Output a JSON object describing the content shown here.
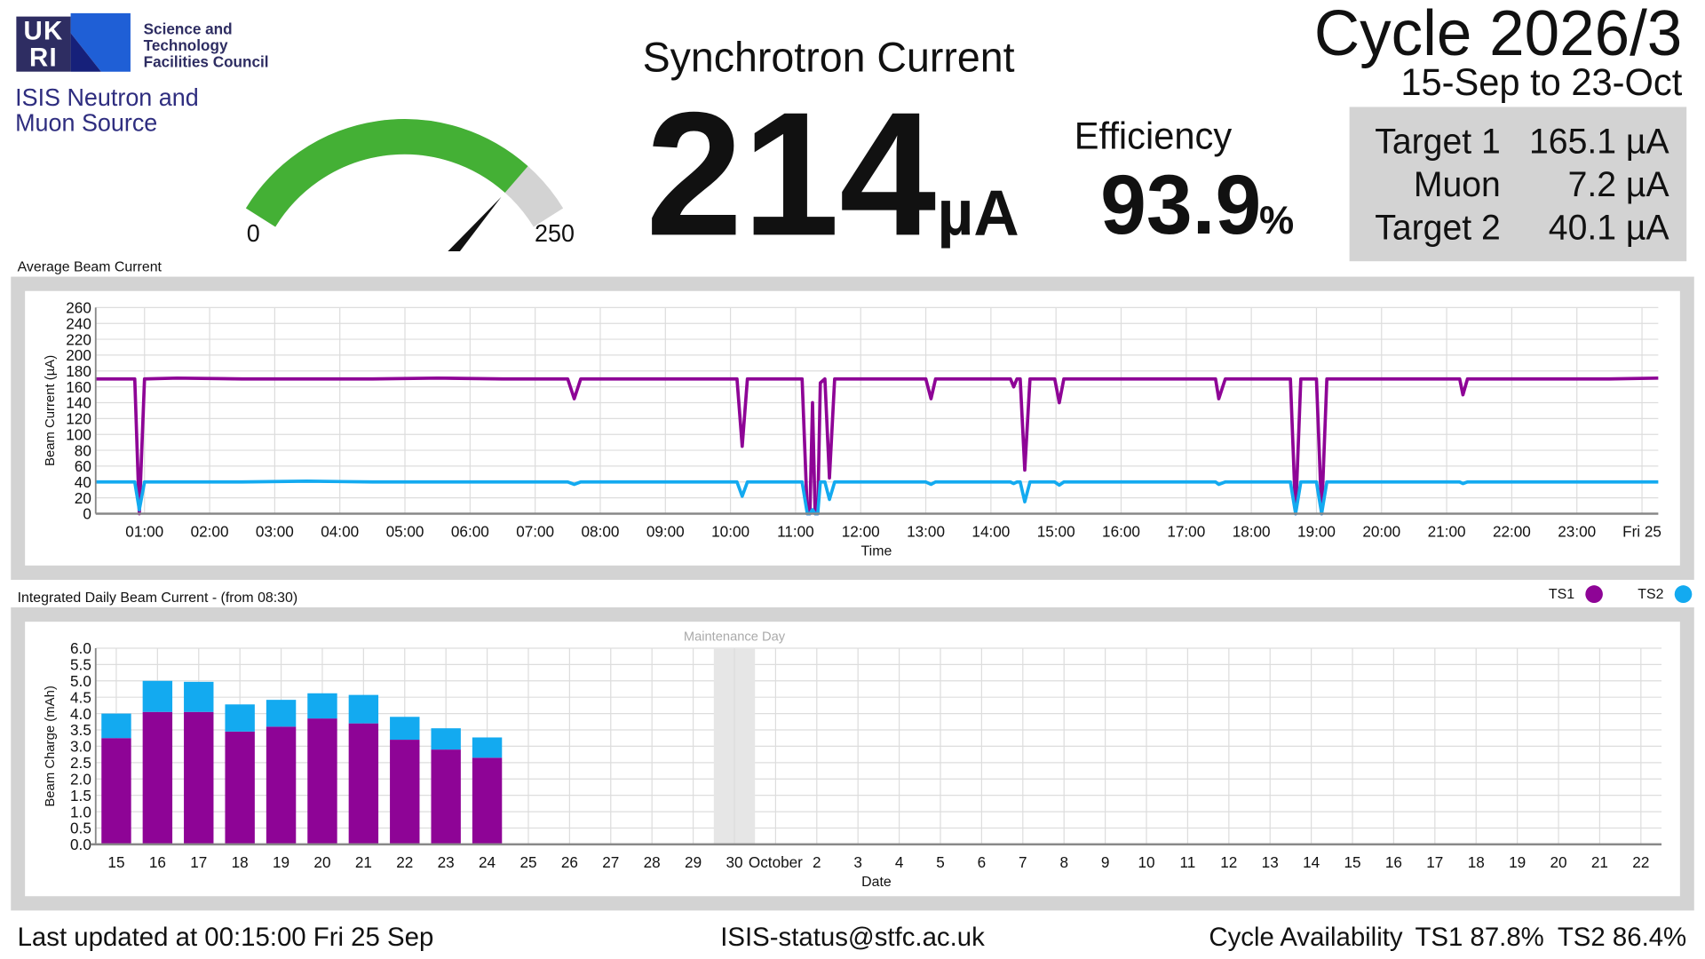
{
  "header": {
    "logo": [
      "UK",
      "RI"
    ],
    "org_lines": [
      "Science and",
      "Technology",
      "Facilities Council"
    ],
    "source_lines": [
      "ISIS Neutron and",
      "Muon Source"
    ]
  },
  "gauge": {
    "min": 0,
    "max": 250,
    "color": "#44b035",
    "track_color": "#d3d3d3"
  },
  "current": {
    "title": "Synchrotron Current",
    "value": 214,
    "unit": "µA"
  },
  "efficiency": {
    "label": "Efficiency",
    "value": 93.9,
    "unit": "%"
  },
  "cycle": {
    "title": "Cycle 2026/3",
    "dates": "15-Sep to 23-Oct"
  },
  "targets": [
    {
      "name": "Target 1",
      "value": "165.1 µA"
    },
    {
      "name": "Muon",
      "value": "7.2 µA"
    },
    {
      "name": "Target 2",
      "value": "40.1 µA"
    }
  ],
  "footer": {
    "updated": "Last updated at 00:15:00 Fri 25 Sep",
    "email": "ISIS-status@stfc.ac.uk",
    "availability_label": "Cycle Availability",
    "availability": [
      "TS1 87.8%",
      "TS2 86.4%"
    ]
  },
  "chart_data": [
    {
      "type": "line",
      "title": "Average Beam Current",
      "x_label": "Time",
      "y_label": "Beam Current (µA)",
      "grid": true,
      "x": [
        0.25,
        0.85,
        0.92,
        1.0,
        1.5,
        2.5,
        3.5,
        4.5,
        5.5,
        6.5,
        7.5,
        7.6,
        7.7,
        8.5,
        9.5,
        10.1,
        10.18,
        10.26,
        11.1,
        11.18,
        11.22,
        11.26,
        11.3,
        11.34,
        11.38,
        11.45,
        11.52,
        11.6,
        12.5,
        13.0,
        13.08,
        13.15,
        14.3,
        14.35,
        14.4,
        14.45,
        14.52,
        14.6,
        14.98,
        15.05,
        15.12,
        16.5,
        17.45,
        17.5,
        17.6,
        18.6,
        18.68,
        18.76,
        19.0,
        19.08,
        19.16,
        20.5,
        21.2,
        21.25,
        21.32,
        22.5,
        23.5,
        24.25
      ],
      "series": [
        {
          "color": "#8e0496",
          "values": [
            170,
            170,
            0,
            170,
            171,
            170,
            170,
            170,
            171,
            170,
            170,
            145,
            170,
            170,
            170,
            170,
            85,
            170,
            170,
            0,
            0,
            140,
            0,
            0,
            165,
            170,
            45,
            170,
            170,
            170,
            145,
            170,
            170,
            160,
            170,
            170,
            55,
            170,
            170,
            140,
            170,
            170,
            170,
            145,
            170,
            170,
            0,
            170,
            170,
            0,
            170,
            170,
            170,
            150,
            170,
            170,
            170,
            171
          ]
        },
        {
          "color": "#13aaf0",
          "values": [
            40,
            40,
            5,
            40,
            40,
            40,
            41,
            40,
            40,
            40,
            40,
            37,
            40,
            40,
            40,
            40,
            22,
            40,
            40,
            0,
            0,
            5,
            0,
            0,
            40,
            40,
            18,
            40,
            40,
            40,
            37,
            40,
            40,
            38,
            40,
            40,
            15,
            40,
            40,
            36,
            40,
            40,
            40,
            37,
            40,
            40,
            0,
            40,
            40,
            0,
            40,
            40,
            40,
            38,
            40,
            40,
            40,
            40
          ]
        }
      ],
      "xlim": [
        0.25,
        24.25
      ],
      "xticks": [
        {
          "value": 1,
          "label": "01:00"
        },
        {
          "value": 2,
          "label": "02:00"
        },
        {
          "value": 3,
          "label": "03:00"
        },
        {
          "value": 4,
          "label": "04:00"
        },
        {
          "value": 5,
          "label": "05:00"
        },
        {
          "value": 6,
          "label": "06:00"
        },
        {
          "value": 7,
          "label": "07:00"
        },
        {
          "value": 8,
          "label": "08:00"
        },
        {
          "value": 9,
          "label": "09:00"
        },
        {
          "value": 10,
          "label": "10:00"
        },
        {
          "value": 11,
          "label": "11:00"
        },
        {
          "value": 12,
          "label": "12:00"
        },
        {
          "value": 13,
          "label": "13:00"
        },
        {
          "value": 14,
          "label": "14:00"
        },
        {
          "value": 15,
          "label": "15:00"
        },
        {
          "value": 16,
          "label": "16:00"
        },
        {
          "value": 17,
          "label": "17:00"
        },
        {
          "value": 18,
          "label": "18:00"
        },
        {
          "value": 19,
          "label": "19:00"
        },
        {
          "value": 20,
          "label": "20:00"
        },
        {
          "value": 21,
          "label": "21:00"
        },
        {
          "value": 22,
          "label": "22:00"
        },
        {
          "value": 23,
          "label": "23:00"
        },
        {
          "value": 24,
          "label": "Fri 25"
        }
      ],
      "ylim": [
        0,
        260
      ],
      "yticks": [
        0,
        20,
        40,
        60,
        80,
        100,
        120,
        140,
        160,
        180,
        200,
        220,
        240,
        260
      ]
    },
    {
      "type": "stacked_bar",
      "title": "Integrated Daily Beam Current - (from 08:30)",
      "x_label": "Date",
      "y_label": "Beam Charge (mAh)",
      "grid": true,
      "legend": "top-right",
      "categories": [
        "15",
        "16",
        "17",
        "18",
        "19",
        "20",
        "21",
        "22",
        "23",
        "24",
        "25",
        "26",
        "27",
        "28",
        "29",
        "30",
        "October",
        "2",
        "3",
        "4",
        "5",
        "6",
        "7",
        "8",
        "9",
        "10",
        "11",
        "12",
        "13",
        "14",
        "15",
        "16",
        "17",
        "18",
        "19",
        "20",
        "21",
        "22"
      ],
      "series": [
        {
          "name": "TS1",
          "color": "#8e0496",
          "values": [
            3.25,
            4.05,
            4.05,
            3.45,
            3.6,
            3.85,
            3.7,
            3.2,
            2.9,
            2.65,
            null,
            null,
            null,
            null,
            null,
            null,
            null,
            null,
            null,
            null,
            null,
            null,
            null,
            null,
            null,
            null,
            null,
            null,
            null,
            null,
            null,
            null,
            null,
            null,
            null,
            null,
            null,
            null
          ]
        },
        {
          "name": "TS2",
          "color": "#13aaf0",
          "values": [
            0.75,
            0.95,
            0.92,
            0.83,
            0.82,
            0.77,
            0.87,
            0.7,
            0.65,
            0.62,
            null,
            null,
            null,
            null,
            null,
            null,
            null,
            null,
            null,
            null,
            null,
            null,
            null,
            null,
            null,
            null,
            null,
            null,
            null,
            null,
            null,
            null,
            null,
            null,
            null,
            null,
            null,
            null
          ]
        }
      ],
      "annotations": [
        {
          "text": "Maintenance Day",
          "category": "30"
        }
      ],
      "ylim": [
        0,
        6
      ],
      "yticks": [
        {
          "value": 0,
          "label": "0.0"
        },
        {
          "value": 0.5,
          "label": "0.5"
        },
        {
          "value": 1,
          "label": "1.0"
        },
        {
          "value": 1.5,
          "label": "1.5"
        },
        {
          "value": 2,
          "label": "2.0"
        },
        {
          "value": 2.5,
          "label": "2.5"
        },
        {
          "value": 3,
          "label": "3.0"
        },
        {
          "value": 3.5,
          "label": "3.5"
        },
        {
          "value": 4,
          "label": "4.0"
        },
        {
          "value": 4.5,
          "label": "4.5"
        },
        {
          "value": 5,
          "label": "5.0"
        },
        {
          "value": 5.5,
          "label": "5.5"
        },
        {
          "value": 6,
          "label": "6.0"
        }
      ]
    }
  ]
}
